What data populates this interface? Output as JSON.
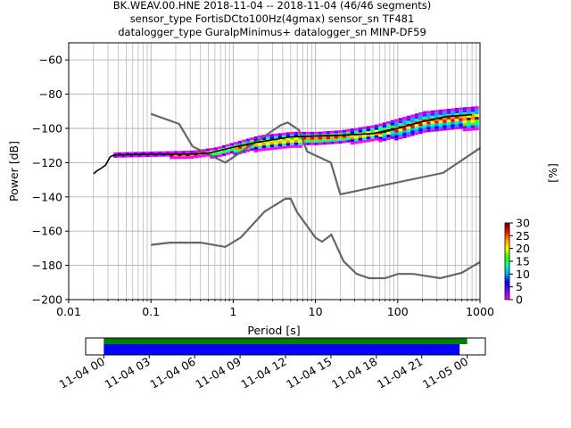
{
  "chart_data": {
    "type": "heatmap",
    "title_lines": [
      "BK.WEAV.00.HNE   2018-11-04 -- 2018-11-04  (46/46 segments)",
      "sensor_type FortisDCto100Hz(4gmax) sensor_sn TF481",
      "datalogger_type GuralpMinimus+ datalogger_sn MINP-DF59"
    ],
    "xlabel": "Period [s]",
    "ylabel": "Power [dB]",
    "xscale": "log",
    "xlim": [
      0.01,
      1000
    ],
    "ylim": [
      -200,
      -50
    ],
    "x_ticks": [
      0.01,
      0.1,
      1,
      10,
      100,
      1000
    ],
    "x_tick_labels": [
      "0.01",
      "0.1",
      "1",
      "10",
      "100",
      "1000"
    ],
    "y_ticks": [
      -200,
      -180,
      -160,
      -140,
      -120,
      -100,
      -80,
      -60
    ],
    "y_tick_labels": [
      "−200",
      "−180",
      "−160",
      "−140",
      "−120",
      "−100",
      "−80",
      "−60"
    ],
    "grid": true,
    "colorbar": {
      "label": "[%]",
      "range": [
        0,
        30
      ],
      "ticks": [
        0,
        5,
        10,
        15,
        20,
        25,
        30
      ],
      "colors": [
        "#ff00ff",
        "#7a00ff",
        "#0000ff",
        "#00aaff",
        "#00ffaa",
        "#33ff00",
        "#ffff00",
        "#ff9900",
        "#ff0000",
        "#660000"
      ]
    },
    "noise_model_color": "#666666",
    "nhnm": [
      {
        "x": 0.1,
        "y": -91.5
      },
      {
        "x": 0.22,
        "y": -97.4
      },
      {
        "x": 0.32,
        "y": -110.5
      },
      {
        "x": 0.8,
        "y": -120
      },
      {
        "x": 3.8,
        "y": -98
      },
      {
        "x": 4.6,
        "y": -96.5
      },
      {
        "x": 6.3,
        "y": -101
      },
      {
        "x": 7.9,
        "y": -113.5
      },
      {
        "x": 15.4,
        "y": -120
      },
      {
        "x": 20,
        "y": -138.5
      },
      {
        "x": 354.8,
        "y": -126
      },
      {
        "x": 1000,
        "y": -111.5
      }
    ],
    "nlnm": [
      {
        "x": 0.1,
        "y": -168
      },
      {
        "x": 0.17,
        "y": -166.7
      },
      {
        "x": 0.4,
        "y": -166.7
      },
      {
        "x": 0.8,
        "y": -169.2
      },
      {
        "x": 1.24,
        "y": -163.7
      },
      {
        "x": 2.4,
        "y": -148.6
      },
      {
        "x": 4.3,
        "y": -141.1
      },
      {
        "x": 5,
        "y": -141.1
      },
      {
        "x": 6,
        "y": -149
      },
      {
        "x": 10,
        "y": -163.8
      },
      {
        "x": 12,
        "y": -166.2
      },
      {
        "x": 15.6,
        "y": -162.1
      },
      {
        "x": 21.9,
        "y": -177.5
      },
      {
        "x": 31.6,
        "y": -185
      },
      {
        "x": 45,
        "y": -187.5
      },
      {
        "x": 70,
        "y": -187.5
      },
      {
        "x": 101,
        "y": -185
      },
      {
        "x": 154,
        "y": -185
      },
      {
        "x": 328,
        "y": -187.5
      },
      {
        "x": 600,
        "y": -184.4
      },
      {
        "x": 1000,
        "y": -178
      }
    ],
    "mode_curve": [
      {
        "x": 0.02,
        "y": -126.5
      },
      {
        "x": 0.022,
        "y": -124.8
      },
      {
        "x": 0.025,
        "y": -123.2
      },
      {
        "x": 0.028,
        "y": -121.5
      },
      {
        "x": 0.032,
        "y": -116.5
      },
      {
        "x": 0.036,
        "y": -115.5
      },
      {
        "x": 0.1,
        "y": -115
      },
      {
        "x": 0.3,
        "y": -115
      },
      {
        "x": 0.5,
        "y": -114.5
      },
      {
        "x": 1,
        "y": -111
      },
      {
        "x": 2,
        "y": -108
      },
      {
        "x": 5,
        "y": -105
      },
      {
        "x": 10,
        "y": -104.5
      },
      {
        "x": 20,
        "y": -104
      },
      {
        "x": 50,
        "y": -103
      },
      {
        "x": 100,
        "y": -100
      },
      {
        "x": 200,
        "y": -96
      },
      {
        "x": 400,
        "y": -93
      },
      {
        "x": 800,
        "y": -92
      }
    ],
    "density_band": [
      {
        "x": 0.035,
        "lo": -116.5,
        "hi": -114
      },
      {
        "x": 0.1,
        "lo": -117,
        "hi": -113.5
      },
      {
        "x": 0.3,
        "lo": -117.5,
        "hi": -113
      },
      {
        "x": 0.6,
        "lo": -117,
        "hi": -111
      },
      {
        "x": 1,
        "lo": -115,
        "hi": -108
      },
      {
        "x": 2,
        "lo": -113,
        "hi": -104
      },
      {
        "x": 5,
        "lo": -111,
        "hi": -102
      },
      {
        "x": 10,
        "lo": -110,
        "hi": -102
      },
      {
        "x": 20,
        "lo": -109,
        "hi": -101
      },
      {
        "x": 50,
        "lo": -108,
        "hi": -98
      },
      {
        "x": 100,
        "lo": -106,
        "hi": -94
      },
      {
        "x": 200,
        "lo": -103,
        "hi": -90
      },
      {
        "x": 500,
        "lo": -101,
        "hi": -88
      },
      {
        "x": 900,
        "lo": -101,
        "hi": -87
      }
    ],
    "timeline": {
      "tick_labels": [
        "11-04 00",
        "11-04 03",
        "11-04 06",
        "11-04 09",
        "11-04 12",
        "11-04 15",
        "11-04 18",
        "11-04 21",
        "11-05 00"
      ],
      "tick_hours": [
        0,
        3,
        6,
        9,
        12,
        15,
        18,
        21,
        24
      ],
      "range_hours": [
        -1.2,
        25.2
      ],
      "coverage_bar": {
        "start": 0,
        "end": 24.0,
        "color": "#008000"
      },
      "segments_bar": {
        "start": 0,
        "end": 23.5,
        "color": "#0000ff"
      }
    }
  }
}
